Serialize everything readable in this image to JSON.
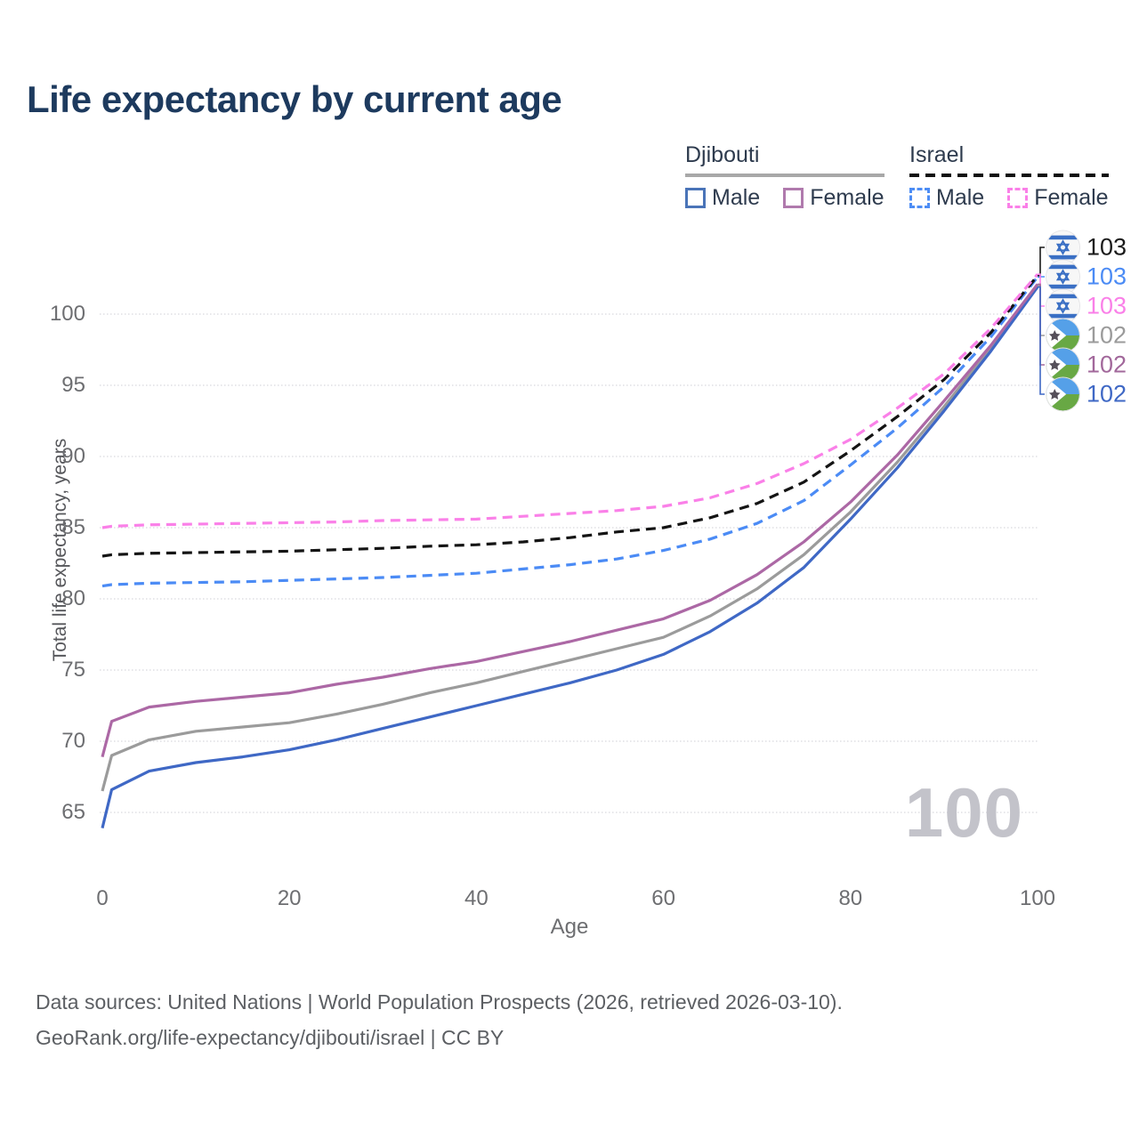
{
  "title": "Life expectancy by current age",
  "legend": {
    "groups": [
      {
        "country": "Djibouti",
        "line_style": "solid",
        "underline_color": "#a8a8a8",
        "items": [
          {
            "label": "Male",
            "color": "#4a74b8"
          },
          {
            "label": "Female",
            "color": "#b07aad"
          }
        ]
      },
      {
        "country": "Israel",
        "line_style": "dashed",
        "underline_color": "#111111",
        "items": [
          {
            "label": "Male",
            "color": "#4d8df5"
          },
          {
            "label": "Female",
            "color": "#fa80e8"
          }
        ]
      }
    ]
  },
  "y_axis": {
    "title": "Total life expectancy, years",
    "ticks": [
      65,
      70,
      75,
      80,
      85,
      90,
      95,
      100
    ]
  },
  "x_axis": {
    "title": "Age",
    "ticks": [
      0,
      20,
      40,
      60,
      80,
      100
    ]
  },
  "watermark": "100",
  "end_labels": [
    {
      "flag": "israel",
      "value": "103",
      "color": "#1a1a1a",
      "series": "israel_combined"
    },
    {
      "flag": "israel",
      "value": "103",
      "color": "#4b8bf5",
      "series": "israel_male"
    },
    {
      "flag": "israel",
      "value": "103",
      "color": "#fa80e8",
      "series": "israel_female"
    },
    {
      "flag": "djibouti",
      "value": "102",
      "color": "#9b9b9b",
      "series": "djibouti_combined"
    },
    {
      "flag": "djibouti",
      "value": "102",
      "color": "#a2689b",
      "series": "djibouti_female"
    },
    {
      "flag": "djibouti",
      "value": "102",
      "color": "#3f68c5",
      "series": "djibouti_male"
    }
  ],
  "footer": {
    "line1": "Data sources: United Nations | World Population Prospects (2026, retrieved 2026-03-10).",
    "line2": "GeoRank.org/life-expectancy/djibouti/israel | CC BY"
  },
  "chart_data": {
    "type": "line",
    "title": "Life expectancy by current age",
    "xlabel": "Age",
    "ylabel": "Total life expectancy, years",
    "xlim": [
      0,
      100
    ],
    "ylim": [
      62.5,
      104
    ],
    "x_ticks": [
      0,
      20,
      40,
      60,
      80,
      100
    ],
    "y_ticks": [
      65,
      70,
      75,
      80,
      85,
      90,
      95,
      100
    ],
    "grid": true,
    "legend_position": "top-right",
    "x": [
      0,
      1,
      5,
      10,
      15,
      20,
      25,
      30,
      35,
      40,
      45,
      50,
      55,
      60,
      65,
      70,
      75,
      80,
      85,
      90,
      95,
      100
    ],
    "series": [
      {
        "key": "djibouti_combined",
        "name": "Djibouti (both sexes)",
        "color": "#9b9b9b",
        "style": "solid",
        "end_label": "102",
        "values": [
          66.5,
          69.0,
          70.1,
          70.7,
          71.0,
          71.3,
          71.9,
          72.6,
          73.4,
          74.1,
          74.9,
          75.7,
          76.5,
          77.3,
          78.8,
          80.7,
          83.1,
          86.1,
          89.6,
          93.5,
          97.6,
          102.0
        ]
      },
      {
        "key": "djibouti_male",
        "name": "Djibouti Male",
        "color": "#3f68c5",
        "style": "solid",
        "end_label": "102",
        "values": [
          63.9,
          66.6,
          67.9,
          68.5,
          68.9,
          69.4,
          70.1,
          70.9,
          71.7,
          72.5,
          73.3,
          74.1,
          75.0,
          76.1,
          77.7,
          79.7,
          82.2,
          85.6,
          89.2,
          93.2,
          97.4,
          101.9
        ]
      },
      {
        "key": "djibouti_female",
        "name": "Djibouti Female",
        "color": "#ac68a5",
        "style": "solid",
        "end_label": "102",
        "values": [
          68.9,
          71.4,
          72.4,
          72.8,
          73.1,
          73.4,
          74.0,
          74.5,
          75.1,
          75.6,
          76.3,
          77.0,
          77.8,
          78.6,
          79.9,
          81.7,
          84.0,
          86.8,
          90.1,
          93.9,
          97.8,
          102.1
        ]
      },
      {
        "key": "israel_male",
        "name": "Israel Male",
        "color": "#4b8bf5",
        "style": "dashed",
        "end_label": "103",
        "values": [
          80.9,
          81.0,
          81.1,
          81.15,
          81.2,
          81.3,
          81.4,
          81.5,
          81.65,
          81.8,
          82.1,
          82.4,
          82.8,
          83.4,
          84.2,
          85.3,
          86.9,
          89.4,
          92.0,
          94.9,
          98.4,
          102.6
        ]
      },
      {
        "key": "israel_combined",
        "name": "Israel (both sexes)",
        "color": "#141414",
        "style": "dashed",
        "end_label": "103",
        "values": [
          83.0,
          83.1,
          83.2,
          83.25,
          83.3,
          83.35,
          83.45,
          83.55,
          83.7,
          83.8,
          84.0,
          84.3,
          84.7,
          85.0,
          85.7,
          86.7,
          88.2,
          90.4,
          92.8,
          95.4,
          98.7,
          102.7
        ]
      },
      {
        "key": "israel_female",
        "name": "Israel Female",
        "color": "#fa80e8",
        "style": "dashed",
        "end_label": "103",
        "values": [
          85.0,
          85.1,
          85.2,
          85.25,
          85.3,
          85.35,
          85.4,
          85.5,
          85.55,
          85.6,
          85.8,
          86.0,
          86.2,
          86.5,
          87.1,
          88.1,
          89.5,
          91.2,
          93.4,
          95.8,
          99.0,
          102.8
        ]
      }
    ]
  }
}
